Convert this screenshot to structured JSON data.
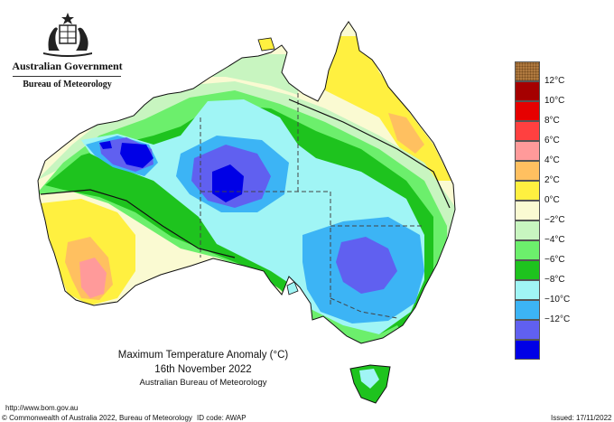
{
  "header": {
    "government": "Australian Government",
    "bureau": "Bureau of Meteorology"
  },
  "legend": [
    {
      "label": "",
      "color": "#b07a40",
      "icon": "brown-stipple-swatch"
    },
    {
      "label": "12°C",
      "color": "#a50000"
    },
    {
      "label": "10°C",
      "color": "#e60000"
    },
    {
      "label": "8°C",
      "color": "#ff4040"
    },
    {
      "label": "6°C",
      "color": "#ff9a9a"
    },
    {
      "label": "4°C",
      "color": "#ffc060"
    },
    {
      "label": "2°C",
      "color": "#fff040"
    },
    {
      "label": "0°C",
      "color": "#fafad2"
    },
    {
      "label": "−2°C",
      "color": "#c8f5c0"
    },
    {
      "label": "−4°C",
      "color": "#6cef6c"
    },
    {
      "label": "−6°C",
      "color": "#1ec31e"
    },
    {
      "label": "−8°C",
      "color": "#a0f5f5"
    },
    {
      "label": "−10°C",
      "color": "#3cb4f5"
    },
    {
      "label": "−12°C",
      "color": "#6060f0"
    },
    {
      "label": "",
      "color": "#0000e6"
    }
  ],
  "caption": {
    "title": "Maximum Temperature Anomaly (°C)",
    "date": "16th November 2022",
    "agency": "Australian Bureau of Meteorology"
  },
  "footer": {
    "url": "http://www.bom.gov.au",
    "copyright": "© Commonwealth of Australia 2022, Bureau of Meteorology",
    "id_code": "ID code: AWAP",
    "issued": "Issued: 17/11/2022"
  }
}
